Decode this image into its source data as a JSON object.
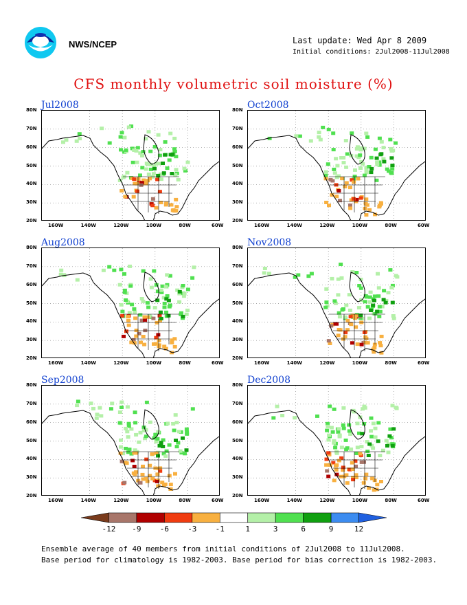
{
  "header": {
    "agency": "NWS/NCEP",
    "last_update": "Last update: Wed Apr 8 2009",
    "initial_conditions": "Initial conditions: 2Jul2008-11Jul2008",
    "title": "CFS monthly volumetric soil moisture (%)"
  },
  "axes": {
    "lat_labels": [
      "80N",
      "70N",
      "60N",
      "50N",
      "40N",
      "30N",
      "20N"
    ],
    "lon_labels": [
      "160W",
      "140W",
      "120W",
      "100W",
      "80W",
      "60W"
    ]
  },
  "panels": [
    {
      "label": "Jul2008",
      "col": 0,
      "row": 0
    },
    {
      "label": "Oct2008",
      "col": 1,
      "row": 0
    },
    {
      "label": "Aug2008",
      "col": 0,
      "row": 1
    },
    {
      "label": "Nov2008",
      "col": 1,
      "row": 1
    },
    {
      "label": "Sep2008",
      "col": 0,
      "row": 2
    },
    {
      "label": "Dec2008",
      "col": 1,
      "row": 2
    }
  ],
  "colorbar": {
    "labels": [
      "-12",
      "-9",
      "-6",
      "-3",
      "-1",
      "1",
      "3",
      "6",
      "9",
      "12"
    ],
    "colors": [
      "#7a3b1c",
      "#a8766a",
      "#b00000",
      "#f03c10",
      "#f8b040",
      "#ffffff",
      "#b4f0a8",
      "#50e050",
      "#10a010",
      "#3c8cf0",
      "#2060e0"
    ]
  },
  "footer": {
    "line1": "Ensemble average of 40 members from initial conditions of 2Jul2008 to 11Jul2008.",
    "line2": "Base period for climatology is 1982-2003. Base period for bias correction is 1982-2003."
  }
}
